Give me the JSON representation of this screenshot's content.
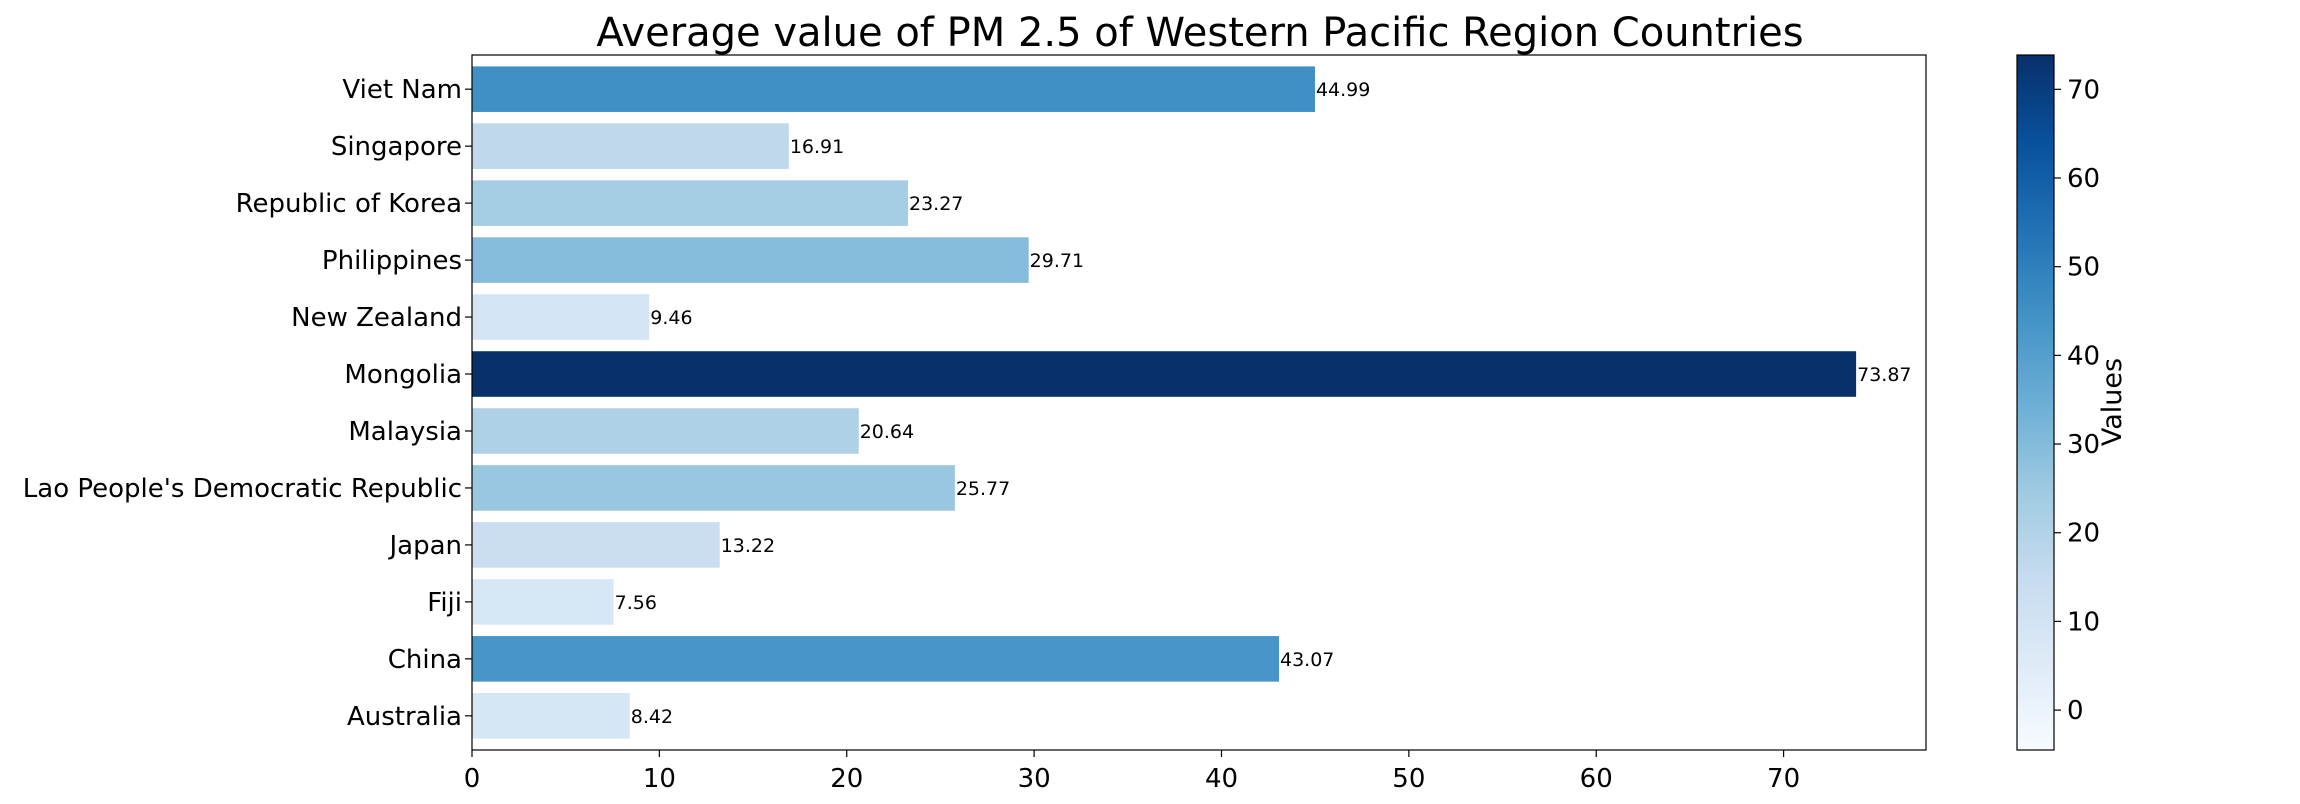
{
  "chart_data": {
    "type": "bar",
    "orientation": "horizontal",
    "title": "Average value of PM 2.5 of Western Pacific Region Countries",
    "xlabel": "",
    "ylabel": "",
    "categories": [
      "Australia",
      "China",
      "Fiji",
      "Japan",
      "Lao People's Democratic Republic",
      "Malaysia",
      "Mongolia",
      "New Zealand",
      "Philippines",
      "Republic of Korea",
      "Singapore",
      "Viet Nam"
    ],
    "values": [
      8.42,
      43.07,
      7.56,
      13.22,
      25.77,
      20.64,
      73.87,
      9.46,
      29.71,
      23.27,
      16.91,
      44.99
    ],
    "value_labels": [
      "8.42",
      "43.07",
      "7.56",
      "13.22",
      "25.77",
      "20.64",
      "73.87",
      "9.46",
      "29.71",
      "23.27",
      "16.91",
      "44.99"
    ],
    "xlim": [
      0,
      77.6
    ],
    "x_ticks": [
      "0",
      "10",
      "20",
      "30",
      "40",
      "50",
      "60",
      "70"
    ],
    "grid": false,
    "legend": "none",
    "colormap": "Blues",
    "colorbar": {
      "label": "Values",
      "range": [
        -4.5,
        73.87
      ],
      "ticks": [
        "0",
        "10",
        "20",
        "30",
        "40",
        "50",
        "60",
        "70"
      ]
    }
  }
}
